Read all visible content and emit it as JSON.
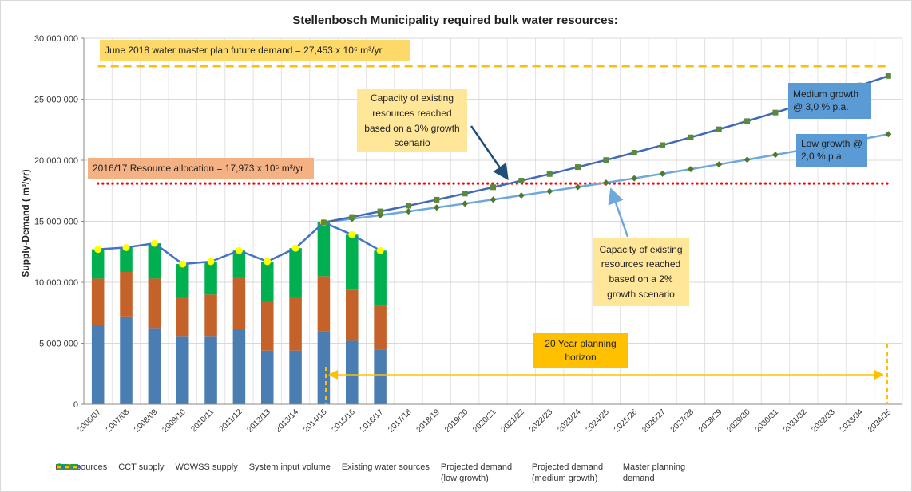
{
  "chart_data": {
    "type": "bar",
    "title": "Stellenbosch Municipality required bulk water resources:",
    "y_label": "Supply-Demand ( m³/yr)",
    "categories": [
      "2006/07",
      "2007/08",
      "2008/09",
      "2009/10",
      "2010/11",
      "2011/12",
      "2012/13",
      "2013/14",
      "2014/15",
      "2015/16",
      "2016/17",
      "2017/18",
      "2018/19",
      "2019/20",
      "2020/21",
      "2021/22",
      "2022/23",
      "2023/24",
      "2024/25",
      "2025/26",
      "2026/27",
      "2027/28",
      "2028/29",
      "2029/30",
      "2030/31",
      "2031/32",
      "2032/33",
      "2033/34",
      "2034/35"
    ],
    "ylim": [
      0,
      30000000
    ],
    "yticks": [
      {
        "value": 0,
        "label": "0"
      },
      {
        "value": 5000000,
        "label": "5 000 000"
      },
      {
        "value": 10000000,
        "label": "10 000 000"
      },
      {
        "value": 15000000,
        "label": "15 000 000"
      },
      {
        "value": 20000000,
        "label": "20 000 000"
      },
      {
        "value": 25000000,
        "label": "25 000 000"
      },
      {
        "value": 30000000,
        "label": "30 000 000"
      }
    ],
    "grid": true,
    "series": [
      {
        "name": "Own sources",
        "type": "bar",
        "color": "#4a7eb3",
        "values": [
          6500000,
          7200000,
          6250000,
          5600000,
          5600000,
          6200000,
          4400000,
          4400000,
          6000000,
          5200000,
          4500000,
          null,
          null,
          null,
          null,
          null,
          null,
          null,
          null,
          null,
          null,
          null,
          null,
          null,
          null,
          null,
          null,
          null,
          null
        ]
      },
      {
        "name": "CCT supply",
        "type": "bar",
        "color": "#c5622a",
        "values": [
          3800000,
          3650000,
          4050000,
          3200000,
          3400000,
          4200000,
          4000000,
          4400000,
          4500000,
          4200000,
          3600000,
          null,
          null,
          null,
          null,
          null,
          null,
          null,
          null,
          null,
          null,
          null,
          null,
          null,
          null,
          null,
          null,
          null,
          null
        ]
      },
      {
        "name": "WCWSS supply",
        "type": "bar",
        "color": "#00b050",
        "values": [
          2400000,
          2000000,
          2900000,
          2700000,
          2700000,
          2200000,
          3300000,
          4000000,
          4400000,
          4500000,
          4500000,
          null,
          null,
          null,
          null,
          null,
          null,
          null,
          null,
          null,
          null,
          null,
          null,
          null,
          null,
          null,
          null,
          null,
          null
        ]
      },
      {
        "name": "System input volume",
        "type": "line",
        "color": "#4472c4",
        "line_style": "solid",
        "marker": "circle",
        "marker_color": "#ffff00",
        "values": [
          12700000,
          12850000,
          13200000,
          11500000,
          11700000,
          12600000,
          11700000,
          12800000,
          14900000,
          13900000,
          12600000,
          null,
          null,
          null,
          null,
          null,
          null,
          null,
          null,
          null,
          null,
          null,
          null,
          null,
          null,
          null,
          null,
          null,
          null
        ]
      },
      {
        "name": "Existing water sources",
        "type": "line",
        "color": "#ff0000",
        "line_style": "dotted",
        "marker": null,
        "values": [
          18100000,
          18100000,
          18100000,
          18100000,
          18100000,
          18100000,
          18100000,
          18100000,
          18100000,
          18100000,
          18100000,
          18100000,
          18100000,
          18100000,
          18100000,
          18100000,
          18100000,
          18100000,
          18100000,
          18100000,
          18100000,
          18100000,
          18100000,
          18100000,
          18100000,
          18100000,
          18100000,
          18100000,
          18100000
        ]
      },
      {
        "name": "Projected demand (low growth)",
        "type": "line",
        "color": "#6fa8dc",
        "line_style": "solid",
        "marker": "diamond",
        "marker_color": "#4f7a28",
        "values": [
          null,
          null,
          null,
          null,
          null,
          null,
          null,
          null,
          14900000,
          15200000,
          15500000,
          15810000,
          16130000,
          16450000,
          16780000,
          17120000,
          17460000,
          17810000,
          18160000,
          18520000,
          18900000,
          19270000,
          19660000,
          20050000,
          20450000,
          20860000,
          21280000,
          21700000,
          22140000
        ]
      },
      {
        "name": "Projected demand (medium growth)",
        "type": "line",
        "color": "#4169b8",
        "line_style": "solid",
        "marker": "square",
        "marker_color": "#5a8a3a",
        "values": [
          null,
          null,
          null,
          null,
          null,
          null,
          null,
          null,
          14900000,
          15350000,
          15810000,
          16280000,
          16770000,
          17270000,
          17790000,
          18330000,
          18870000,
          19440000,
          20020000,
          20620000,
          21240000,
          21880000,
          22540000,
          23210000,
          23910000,
          24630000,
          25370000,
          26130000,
          26910000
        ]
      },
      {
        "name": "Master planning demand",
        "type": "line",
        "color": "#ffc000",
        "line_style": "dashed",
        "marker": null,
        "values": [
          27700000,
          27700000,
          27700000,
          27700000,
          27700000,
          27700000,
          27700000,
          27700000,
          27700000,
          27700000,
          27700000,
          27700000,
          27700000,
          27700000,
          27700000,
          27700000,
          27700000,
          27700000,
          27700000,
          27700000,
          27700000,
          27700000,
          27700000,
          27700000,
          27700000,
          27700000,
          27700000,
          27700000,
          27700000
        ]
      }
    ],
    "annotations": [
      "June 2018 water master plan future demand = 27,453 x 10⁶ m³/yr",
      "2016/17 Resource allocation = 17,973 x 10⁶ m³/yr",
      "Capacity of existing resources reached based on a 3% growth scenario",
      "Capacity of existing resources reached based on a 2% growth scenario",
      "Medium growth @ 3,0 % p.a.",
      "Low growth @ 2,0 % p.a.",
      "20 Year planning horizon"
    ],
    "legend": "bottom"
  }
}
